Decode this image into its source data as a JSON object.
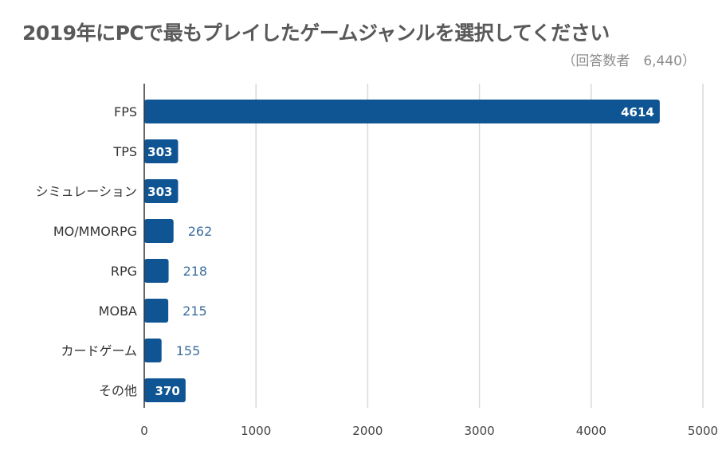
{
  "chart_data": {
    "type": "bar",
    "orientation": "horizontal",
    "title": "2019年にPCで最もプレイしたゲームジャンルを選択してください",
    "subtitle": "（回答数者　6,440）",
    "categories": [
      "FPS",
      "TPS",
      "シミュレーション",
      "MO/MMORPG",
      "RPG",
      "MOBA",
      "カードゲーム",
      "その他"
    ],
    "values": [
      4614,
      303,
      303,
      262,
      218,
      215,
      155,
      370
    ],
    "data_labels": [
      "4614",
      "303",
      "303",
      "262",
      "218",
      "215",
      "155",
      "370"
    ],
    "x_ticks": [
      "0",
      "1000",
      "2000",
      "3000",
      "4000",
      "5000"
    ],
    "xlim": [
      0,
      5000
    ],
    "grid": true,
    "legend": "none",
    "bar_color": "#0f5594",
    "label_inside_color": "#ffffff",
    "label_outside_color": "#3d6e9e",
    "grid_color": "#d9d9d9"
  }
}
